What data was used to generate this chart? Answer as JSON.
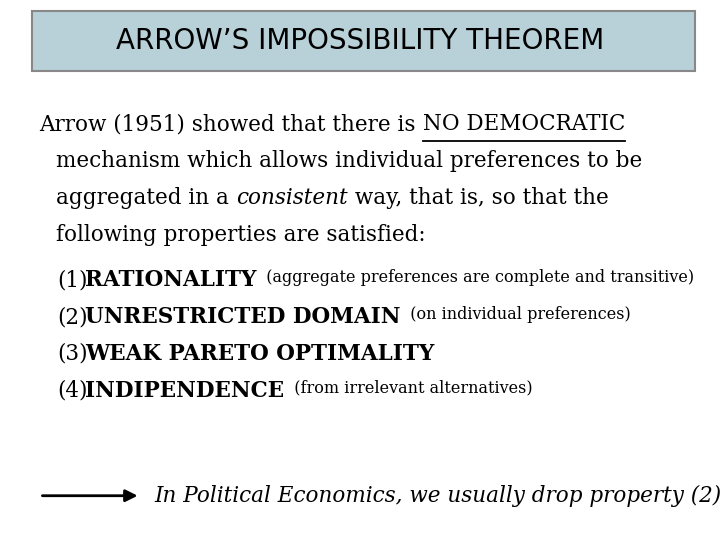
{
  "title": "ARROW’S IMPOSSIBILITY THEOREM",
  "title_box_bg": "#b8d0d8",
  "title_box_edge": "#888888",
  "bg_color": "#ffffff",
  "text_color": "#000000",
  "body_font_size": 15.5,
  "small_font_size": 11.5,
  "title_font_size": 20,
  "items": [
    {
      "num": "(1)",
      "bold": "RATIONALITY",
      "small": "  (aggregate preferences are complete and transitive)"
    },
    {
      "num": "(2)",
      "bold": "UNRESTRICTED DOMAIN",
      "small": "  (on individual preferences)"
    },
    {
      "num": "(3)",
      "bold": "WEAK PARETO OPTIMALITY",
      "small": ""
    },
    {
      "num": "(4)",
      "bold": "INDIPENDENCE",
      "small": "  (from irrelevant alternatives)"
    }
  ],
  "footnote_italic": "In Political Economics, we usually drop property (2)"
}
